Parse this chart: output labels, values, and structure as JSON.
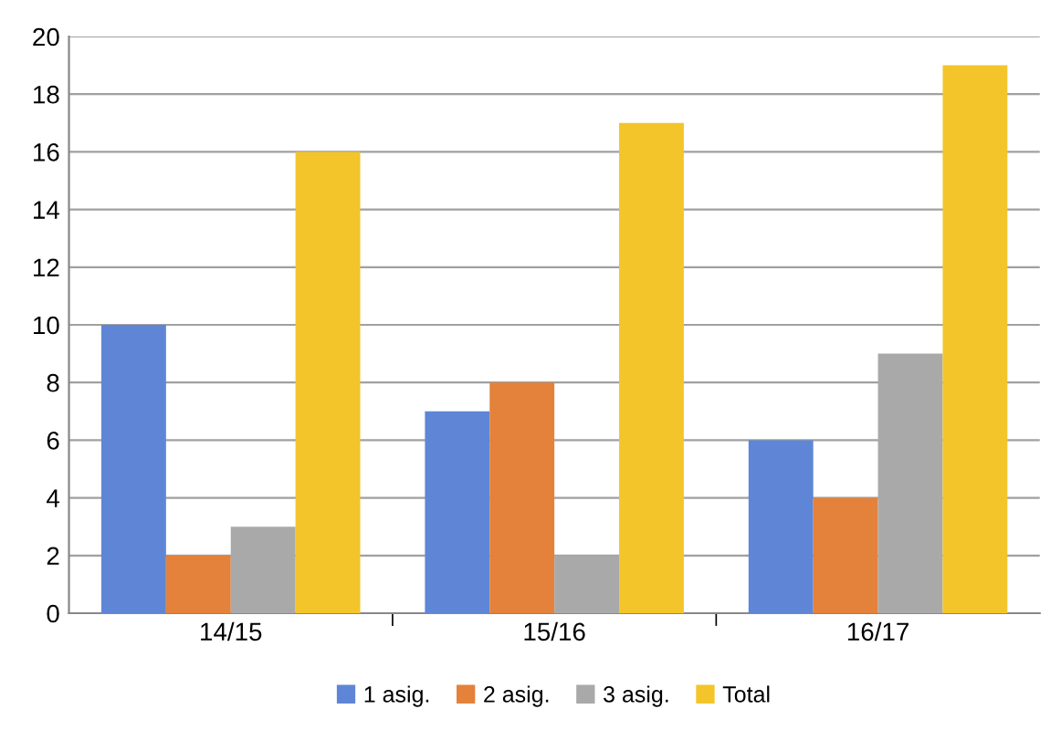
{
  "chart_data": {
    "type": "bar",
    "categories": [
      "14/15",
      "15/16",
      "16/17"
    ],
    "series": [
      {
        "name": "1 asig.",
        "color": "#5f86d6",
        "values": [
          10,
          7,
          6
        ]
      },
      {
        "name": "2 asig.",
        "color": "#e4813a",
        "values": [
          2,
          8,
          4
        ]
      },
      {
        "name": "3 asig.",
        "color": "#a9a9a9",
        "values": [
          3,
          2,
          9
        ]
      },
      {
        "name": "Total",
        "color": "#f3c52a",
        "values": [
          16,
          17,
          19
        ]
      }
    ],
    "ylim": [
      0,
      20
    ],
    "yticks": [
      0,
      2,
      4,
      6,
      8,
      10,
      12,
      14,
      16,
      18,
      20
    ],
    "grid": "y",
    "legend": "bottom"
  }
}
